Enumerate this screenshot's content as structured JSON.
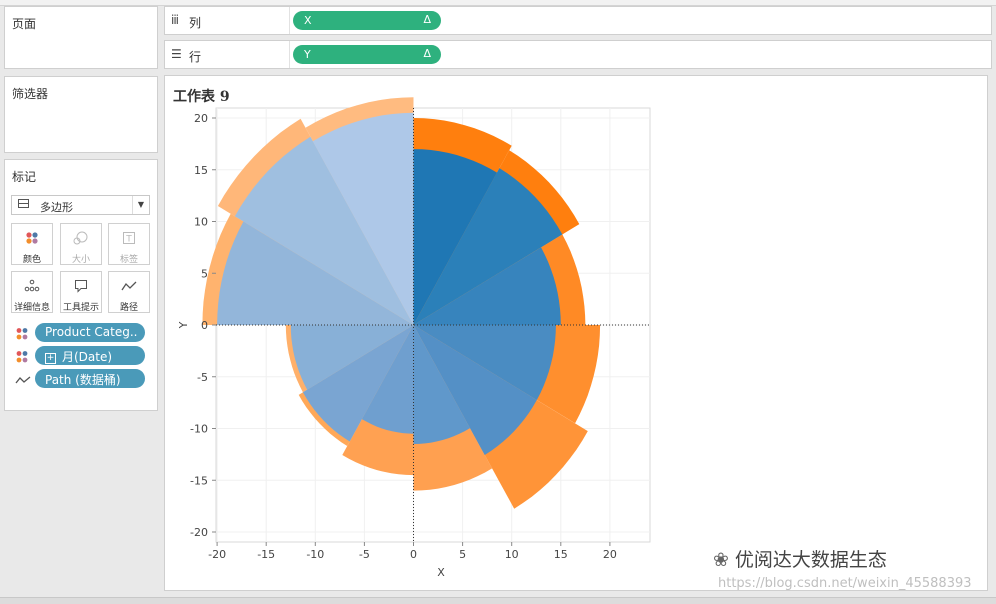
{
  "panels": {
    "pages": "页面",
    "filters": "筛选器",
    "marks": "标记"
  },
  "shelves": {
    "columns": {
      "label": "列",
      "pill": "X",
      "delta": "Δ"
    },
    "rows": {
      "label": "行",
      "pill": "Y",
      "delta": "Δ"
    }
  },
  "marks": {
    "type": "多边形",
    "buttons": [
      {
        "label": "颜色",
        "icon": "color-dots-icon"
      },
      {
        "label": "大小",
        "icon": "size-icon"
      },
      {
        "label": "标签",
        "icon": "label-icon"
      },
      {
        "label": "详细信息",
        "icon": "detail-icon"
      },
      {
        "label": "工具提示",
        "icon": "tooltip-icon"
      },
      {
        "label": "路径",
        "icon": "path-icon"
      }
    ],
    "fields": [
      {
        "text": "Product Categ..",
        "icon": "color-dots-icon"
      },
      {
        "text": "月(Date)",
        "icon": "color-dots-icon",
        "plus": "⊞"
      },
      {
        "text": "Path (数据桶)",
        "icon": "path-line-icon"
      }
    ]
  },
  "sheet": {
    "title": "工作表 9"
  },
  "chart_data": {
    "type": "area",
    "subtype": "polar polygon (radial bars)",
    "xlabel": "X",
    "ylabel": "Y",
    "xlim": [
      -20,
      24
    ],
    "ylim": [
      -21,
      20
    ],
    "xticks": [
      -20,
      -15,
      -10,
      -5,
      0,
      5,
      10,
      15,
      20
    ],
    "yticks": [
      20,
      15,
      10,
      5,
      0,
      -5,
      -10,
      -15,
      -20
    ],
    "grid": true,
    "sectors": [
      {
        "angle_start": 0,
        "angle_end": 30,
        "outer": 20,
        "inner": 17
      },
      {
        "angle_start": 30,
        "angle_end": 60,
        "outer": 19.5,
        "inner": 17.5
      },
      {
        "angle_start": 60,
        "angle_end": 90,
        "outer": 17.5,
        "inner": 15
      },
      {
        "angle_start": 90,
        "angle_end": 120,
        "outer": 19,
        "inner": 14.5
      },
      {
        "angle_start": 120,
        "angle_end": 150,
        "outer": 20.5,
        "inner": 14.5
      },
      {
        "angle_start": 150,
        "angle_end": 180,
        "outer": 16,
        "inner": 11.5
      },
      {
        "angle_start": 180,
        "angle_end": 210,
        "outer": 14.5,
        "inner": 10.5
      },
      {
        "angle_start": 210,
        "angle_end": 240,
        "outer": 13.5,
        "inner": 13
      },
      {
        "angle_start": 240,
        "angle_end": 270,
        "outer": 13,
        "inner": 12.5
      },
      {
        "angle_start": 270,
        "angle_end": 300,
        "outer": 21.5,
        "inner": 20
      },
      {
        "angle_start": 300,
        "angle_end": 330,
        "outer": 23,
        "inner": 21
      },
      {
        "angle_start": 330,
        "angle_end": 360,
        "outer": 22,
        "inner": 20.5
      }
    ],
    "colors": {
      "outer": [
        "#ff7f0e",
        "#ff7f0e",
        "#ff8a25",
        "#ff8f2e",
        "#ff9438",
        "#ffa050",
        "#ffa152",
        "#ffa858",
        "#ffb06a",
        "#ffb36e",
        "#ffb779",
        "#ffbb80"
      ],
      "inner": [
        "#1f77b4",
        "#2b80b9",
        "#3784bd",
        "#4a8cc2",
        "#5490c6",
        "#6098cb",
        "#6f9fcf",
        "#7aa5d2",
        "#88b0d7",
        "#93b6da",
        "#9fbfe0",
        "#aec8e8"
      ]
    }
  },
  "watermark": {
    "brand": "优阅达大数据生态",
    "url": "https://blog.csdn.net/weixin_45588393"
  }
}
